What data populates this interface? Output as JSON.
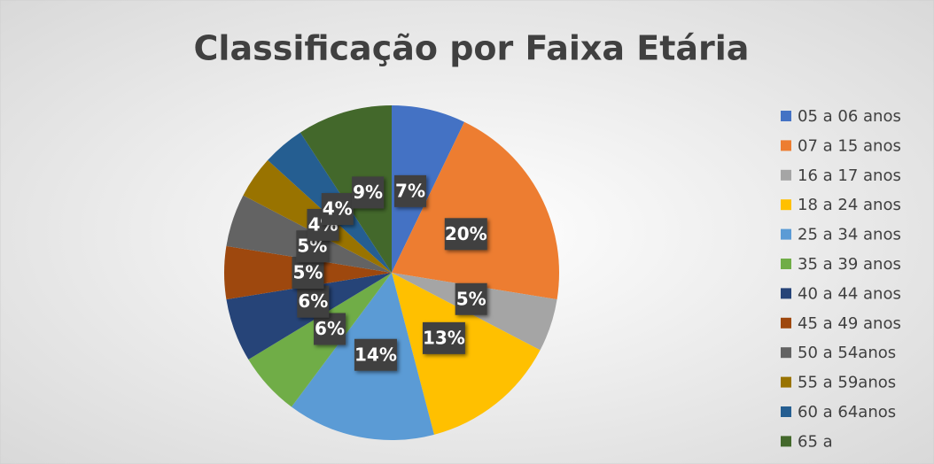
{
  "chart_data": {
    "type": "pie",
    "title": "Classificação por Faixa Etária",
    "categories": [
      "05 a 06 anos",
      "07 a 15 anos",
      "16 a 17 anos",
      "18 a 24 anos",
      "25 a 34 anos",
      "35 a 39 anos",
      "40 a 44 anos",
      "45 a 49 anos",
      "50 a 54anos",
      "55 a 59anos",
      "60 a 64anos",
      "65 a"
    ],
    "values": [
      7,
      20,
      5,
      13,
      14,
      6,
      6,
      5,
      5,
      4,
      4,
      9
    ],
    "value_labels": [
      "7%",
      "20%",
      "5%",
      "13%",
      "14%",
      "6%",
      "6%",
      "5%",
      "5%",
      "4%",
      "4%",
      "9%"
    ],
    "colors": [
      "#4472c4",
      "#ed7d31",
      "#a5a5a5",
      "#ffc000",
      "#5b9bd5",
      "#70ad47",
      "#264478",
      "#9e480e",
      "#636363",
      "#997300",
      "#255e91",
      "#43682b"
    ],
    "legend": "right"
  }
}
